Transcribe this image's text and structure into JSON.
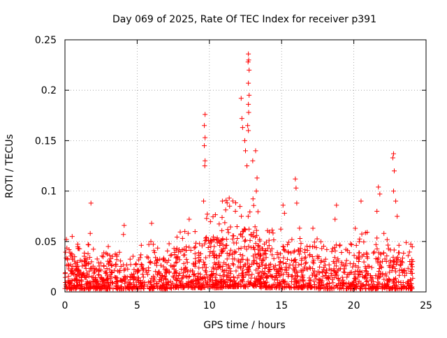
{
  "chart_data": {
    "type": "scatter",
    "title": "Day 069 of 2025, Rate Of TEC Index for receiver p391",
    "xlabel": "GPS time / hours",
    "ylabel": "ROTI / TECUs",
    "xlim": [
      0,
      25
    ],
    "ylim": [
      0,
      0.25
    ],
    "xticks": [
      0,
      5,
      10,
      15,
      20,
      25
    ],
    "yticks": [
      0,
      0.05,
      0.1,
      0.15,
      0.2,
      0.25
    ],
    "xtick_labels": [
      "0",
      "5",
      "10",
      "15",
      "20",
      "25"
    ],
    "ytick_labels": [
      "0",
      "0.05",
      "0.1",
      "0.15",
      "0.2",
      "0.25"
    ],
    "grid": true,
    "grid_style": "dotted",
    "marker": "+",
    "marker_color": "#ff0000",
    "notable_points": [
      {
        "x": 1.8,
        "y": 0.088
      },
      {
        "x": 1.75,
        "y": 0.058
      },
      {
        "x": 4.1,
        "y": 0.066
      },
      {
        "x": 4.05,
        "y": 0.057
      },
      {
        "x": 6.0,
        "y": 0.068
      },
      {
        "x": 5.95,
        "y": 0.05
      },
      {
        "x": 9.7,
        "y": 0.176
      },
      {
        "x": 9.65,
        "y": 0.165
      },
      {
        "x": 9.7,
        "y": 0.153
      },
      {
        "x": 9.65,
        "y": 0.145
      },
      {
        "x": 9.7,
        "y": 0.13
      },
      {
        "x": 9.68,
        "y": 0.125
      },
      {
        "x": 9.6,
        "y": 0.09
      },
      {
        "x": 12.2,
        "y": 0.192
      },
      {
        "x": 12.25,
        "y": 0.172
      },
      {
        "x": 12.3,
        "y": 0.163
      },
      {
        "x": 12.45,
        "y": 0.15
      },
      {
        "x": 12.5,
        "y": 0.14
      },
      {
        "x": 12.7,
        "y": 0.236
      },
      {
        "x": 12.72,
        "y": 0.23
      },
      {
        "x": 12.68,
        "y": 0.228
      },
      {
        "x": 12.75,
        "y": 0.22
      },
      {
        "x": 12.7,
        "y": 0.207
      },
      {
        "x": 12.75,
        "y": 0.195
      },
      {
        "x": 12.7,
        "y": 0.186
      },
      {
        "x": 12.72,
        "y": 0.178
      },
      {
        "x": 12.65,
        "y": 0.165
      },
      {
        "x": 12.7,
        "y": 0.16
      },
      {
        "x": 13.2,
        "y": 0.14
      },
      {
        "x": 13.3,
        "y": 0.113
      },
      {
        "x": 13.25,
        "y": 0.1
      },
      {
        "x": 13.0,
        "y": 0.13
      },
      {
        "x": 12.6,
        "y": 0.125
      },
      {
        "x": 15.95,
        "y": 0.112
      },
      {
        "x": 16.0,
        "y": 0.103
      },
      {
        "x": 16.05,
        "y": 0.088
      },
      {
        "x": 15.1,
        "y": 0.086
      },
      {
        "x": 15.2,
        "y": 0.078
      },
      {
        "x": 18.8,
        "y": 0.086
      },
      {
        "x": 18.7,
        "y": 0.072
      },
      {
        "x": 21.7,
        "y": 0.104
      },
      {
        "x": 21.8,
        "y": 0.097
      },
      {
        "x": 21.6,
        "y": 0.08
      },
      {
        "x": 22.75,
        "y": 0.137
      },
      {
        "x": 22.7,
        "y": 0.133
      },
      {
        "x": 22.8,
        "y": 0.12
      },
      {
        "x": 22.75,
        "y": 0.1
      },
      {
        "x": 22.9,
        "y": 0.09
      },
      {
        "x": 23.0,
        "y": 0.075
      },
      {
        "x": 20.5,
        "y": 0.09
      },
      {
        "x": 20.1,
        "y": 0.063
      },
      {
        "x": 10.9,
        "y": 0.09
      },
      {
        "x": 11.4,
        "y": 0.085
      },
      {
        "x": 11.8,
        "y": 0.08
      },
      {
        "x": 8.6,
        "y": 0.072
      },
      {
        "x": 8.3,
        "y": 0.06
      },
      {
        "x": 0.1,
        "y": 0.052
      },
      {
        "x": 0.5,
        "y": 0.055
      },
      {
        "x": 3.0,
        "y": 0.045
      }
    ],
    "background_density": [
      {
        "x_start": 0.0,
        "x_end": 1.0,
        "y_min": 0.003,
        "y_max": 0.04,
        "peak": 0.052,
        "density": 110
      },
      {
        "x_start": 1.0,
        "x_end": 2.5,
        "y_min": 0.003,
        "y_max": 0.035,
        "peak": 0.048,
        "density": 130
      },
      {
        "x_start": 2.5,
        "x_end": 5.0,
        "y_min": 0.003,
        "y_max": 0.03,
        "peak": 0.04,
        "density": 180
      },
      {
        "x_start": 5.0,
        "x_end": 7.5,
        "y_min": 0.003,
        "y_max": 0.035,
        "peak": 0.048,
        "density": 180
      },
      {
        "x_start": 7.5,
        "x_end": 9.5,
        "y_min": 0.004,
        "y_max": 0.045,
        "peak": 0.06,
        "density": 170
      },
      {
        "x_start": 9.5,
        "x_end": 11.0,
        "y_min": 0.004,
        "y_max": 0.055,
        "peak": 0.08,
        "density": 160
      },
      {
        "x_start": 11.0,
        "x_end": 13.5,
        "y_min": 0.005,
        "y_max": 0.065,
        "peak": 0.095,
        "density": 240
      },
      {
        "x_start": 13.5,
        "x_end": 15.5,
        "y_min": 0.004,
        "y_max": 0.045,
        "peak": 0.07,
        "density": 170
      },
      {
        "x_start": 15.5,
        "x_end": 17.5,
        "y_min": 0.004,
        "y_max": 0.045,
        "peak": 0.065,
        "density": 150
      },
      {
        "x_start": 17.5,
        "x_end": 20.0,
        "y_min": 0.003,
        "y_max": 0.035,
        "peak": 0.05,
        "density": 170
      },
      {
        "x_start": 20.0,
        "x_end": 22.5,
        "y_min": 0.003,
        "y_max": 0.04,
        "peak": 0.06,
        "density": 190
      },
      {
        "x_start": 22.5,
        "x_end": 24.1,
        "y_min": 0.003,
        "y_max": 0.035,
        "peak": 0.05,
        "density": 120
      }
    ]
  }
}
